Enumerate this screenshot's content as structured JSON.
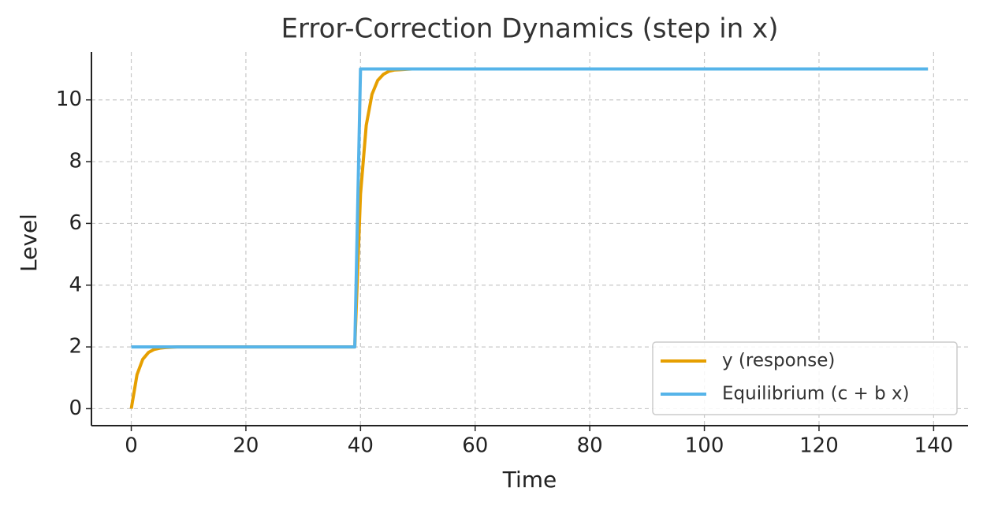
{
  "chart_data": {
    "type": "line",
    "title": "Error-Correction Dynamics (step in x)",
    "x_label": "Time",
    "y_label": "Level",
    "x": [
      0,
      1,
      2,
      3,
      4,
      5,
      6,
      7,
      8,
      9,
      10,
      11,
      12,
      13,
      14,
      15,
      16,
      17,
      18,
      19,
      20,
      21,
      22,
      23,
      24,
      25,
      26,
      27,
      28,
      29,
      30,
      31,
      32,
      33,
      34,
      35,
      36,
      37,
      38,
      39,
      40,
      41,
      42,
      43,
      44,
      45,
      46,
      47,
      48,
      49,
      50,
      51,
      52,
      53,
      54,
      55,
      56,
      57,
      58,
      59,
      60,
      61,
      62,
      63,
      64,
      65,
      66,
      67,
      68,
      69,
      70,
      71,
      72,
      73,
      74,
      75,
      76,
      77,
      78,
      79,
      80,
      81,
      82,
      83,
      84,
      85,
      86,
      87,
      88,
      89,
      90,
      91,
      92,
      93,
      94,
      95,
      96,
      97,
      98,
      99,
      100,
      101,
      102,
      103,
      104,
      105,
      106,
      107,
      108,
      109,
      110,
      111,
      112,
      113,
      114,
      115,
      116,
      117,
      118,
      119,
      120,
      121,
      122,
      123,
      124,
      125,
      126,
      127,
      128,
      129,
      130,
      131,
      132,
      133,
      134,
      135,
      136,
      137,
      138,
      139
    ],
    "series": [
      {
        "name": "y (response)",
        "color": "#E69F00",
        "values": [
          0,
          1.1,
          1.6,
          1.82,
          1.92,
          1.96,
          1.98,
          1.99,
          2,
          2,
          2,
          2,
          2,
          2,
          2,
          2,
          2,
          2,
          2,
          2,
          2,
          2,
          2,
          2,
          2,
          2,
          2,
          2,
          2,
          2,
          2,
          2,
          2,
          2,
          2,
          2,
          2,
          2,
          2,
          2,
          6.95,
          9.18,
          10.18,
          10.63,
          10.83,
          10.93,
          10.97,
          10.98,
          10.99,
          11,
          11,
          11,
          11,
          11,
          11,
          11,
          11,
          11,
          11,
          11,
          11,
          11,
          11,
          11,
          11,
          11,
          11,
          11,
          11,
          11,
          11,
          11,
          11,
          11,
          11,
          11,
          11,
          11,
          11,
          11,
          11,
          11,
          11,
          11,
          11,
          11,
          11,
          11,
          11,
          11,
          11,
          11,
          11,
          11,
          11,
          11,
          11,
          11,
          11,
          11,
          11,
          11,
          11,
          11,
          11,
          11,
          11,
          11,
          11,
          11,
          11,
          11,
          11,
          11,
          11,
          11,
          11,
          11,
          11,
          11,
          11,
          11,
          11,
          11,
          11,
          11,
          11,
          11,
          11,
          11,
          11,
          11,
          11,
          11,
          11,
          11,
          11,
          11,
          11,
          11
        ]
      },
      {
        "name": "Equilibrium (c + b x)",
        "color": "#56B4E9",
        "values": [
          2,
          2,
          2,
          2,
          2,
          2,
          2,
          2,
          2,
          2,
          2,
          2,
          2,
          2,
          2,
          2,
          2,
          2,
          2,
          2,
          2,
          2,
          2,
          2,
          2,
          2,
          2,
          2,
          2,
          2,
          2,
          2,
          2,
          2,
          2,
          2,
          2,
          2,
          2,
          2,
          11,
          11,
          11,
          11,
          11,
          11,
          11,
          11,
          11,
          11,
          11,
          11,
          11,
          11,
          11,
          11,
          11,
          11,
          11,
          11,
          11,
          11,
          11,
          11,
          11,
          11,
          11,
          11,
          11,
          11,
          11,
          11,
          11,
          11,
          11,
          11,
          11,
          11,
          11,
          11,
          11,
          11,
          11,
          11,
          11,
          11,
          11,
          11,
          11,
          11,
          11,
          11,
          11,
          11,
          11,
          11,
          11,
          11,
          11,
          11,
          11,
          11,
          11,
          11,
          11,
          11,
          11,
          11,
          11,
          11,
          11,
          11,
          11,
          11,
          11,
          11,
          11,
          11,
          11,
          11,
          11,
          11,
          11,
          11,
          11,
          11,
          11,
          11,
          11,
          11,
          11,
          11,
          11,
          11,
          11,
          11,
          11,
          11,
          11,
          11
        ]
      }
    ],
    "xlim": [
      -6.95,
      146.0
    ],
    "ylim": [
      -0.55,
      11.55
    ],
    "xticks": [
      0,
      20,
      40,
      60,
      80,
      100,
      120,
      140
    ],
    "yticks": [
      0,
      2,
      4,
      6,
      8,
      10
    ],
    "grid": true,
    "legend": "lower right"
  }
}
